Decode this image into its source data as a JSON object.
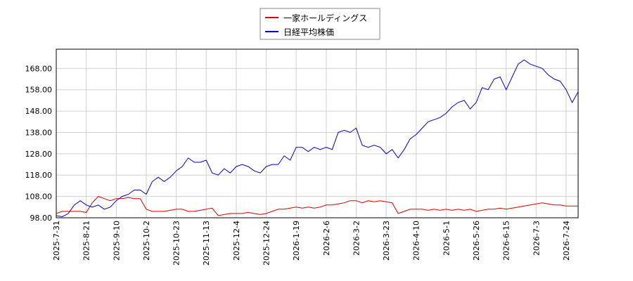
{
  "chart_data": {
    "type": "line",
    "categories": [
      "2025-7-31",
      null,
      null,
      null,
      null,
      "2025-8-21",
      null,
      null,
      null,
      null,
      "2025-9-10",
      null,
      null,
      null,
      null,
      "2025-10-2",
      null,
      null,
      null,
      null,
      "2025-10-23",
      null,
      null,
      null,
      null,
      "2025-11-13",
      null,
      null,
      null,
      null,
      "2025-12-4",
      null,
      null,
      null,
      null,
      "2025-12-24",
      null,
      null,
      null,
      null,
      "2026-1-19",
      null,
      null,
      null,
      null,
      "2026-2-6",
      null,
      null,
      null,
      null,
      "2026-3-2",
      null,
      null,
      null,
      null,
      "2026-3-23",
      null,
      null,
      null,
      null,
      "2026-4-10",
      null,
      null,
      null,
      null,
      "2026-5-1",
      null,
      null,
      null,
      null,
      "2026-5-26",
      null,
      null,
      null,
      null,
      "2026-6-15",
      null,
      null,
      null,
      null,
      "2026-7-3",
      null,
      null,
      null,
      null,
      "2026-7-24",
      null,
      null
    ],
    "series": [
      {
        "name": "一家ホールディングス",
        "color": "#dd0000",
        "values": [
          100,
          101,
          101,
          101,
          101,
          100.5,
          105,
          108,
          107,
          106,
          107,
          107,
          107.5,
          107,
          107,
          102,
          101,
          101,
          101,
          101.5,
          102,
          102,
          101,
          101,
          101.5,
          102,
          102.5,
          99,
          99.5,
          100,
          100,
          100,
          100.5,
          100,
          99.5,
          100,
          101,
          102,
          102,
          102.5,
          103,
          102.5,
          103,
          102.5,
          103,
          104,
          104,
          104.5,
          105,
          106,
          106,
          105,
          106,
          105.5,
          106,
          105.5,
          105,
          100,
          101,
          102,
          102,
          102,
          101.5,
          102,
          101.5,
          102,
          101.5,
          102,
          101.5,
          102,
          101,
          101.5,
          102,
          102,
          102.5,
          102,
          102.5,
          103,
          103.5,
          104,
          104.5,
          105,
          104.5,
          104,
          104,
          103.5,
          103.5,
          103.5
        ]
      },
      {
        "name": "日経平均株価",
        "color": "#0000cc",
        "values": [
          99,
          98.5,
          100,
          104,
          106,
          104,
          103,
          104,
          102,
          103,
          106,
          108,
          109,
          111,
          111,
          109,
          115,
          117,
          115,
          117,
          120,
          122,
          126,
          124,
          124,
          125,
          119,
          118,
          121,
          119,
          122,
          123,
          122,
          120,
          119,
          122,
          123,
          123,
          127,
          125,
          131,
          131,
          129,
          131,
          130,
          131,
          130,
          138,
          139,
          138,
          140,
          132,
          131,
          132,
          131,
          128,
          130,
          126,
          130,
          135,
          137,
          140,
          143,
          144,
          145,
          147,
          150,
          152,
          153,
          149,
          152,
          159,
          158,
          163,
          164,
          158,
          164,
          170,
          172,
          170,
          169,
          168,
          165,
          163,
          162,
          158,
          152,
          157
        ]
      }
    ],
    "ylim": [
      98,
      177
    ],
    "yticks": [
      {
        "value": 98,
        "label": "98.00"
      },
      {
        "value": 108,
        "label": "108.00"
      },
      {
        "value": 118,
        "label": "118.00"
      },
      {
        "value": 128,
        "label": "128.00"
      },
      {
        "value": 138,
        "label": "138.00"
      },
      {
        "value": 148,
        "label": "148.00"
      },
      {
        "value": 158,
        "label": "158.00"
      },
      {
        "value": 168,
        "label": "168.00"
      }
    ],
    "grid": true
  }
}
